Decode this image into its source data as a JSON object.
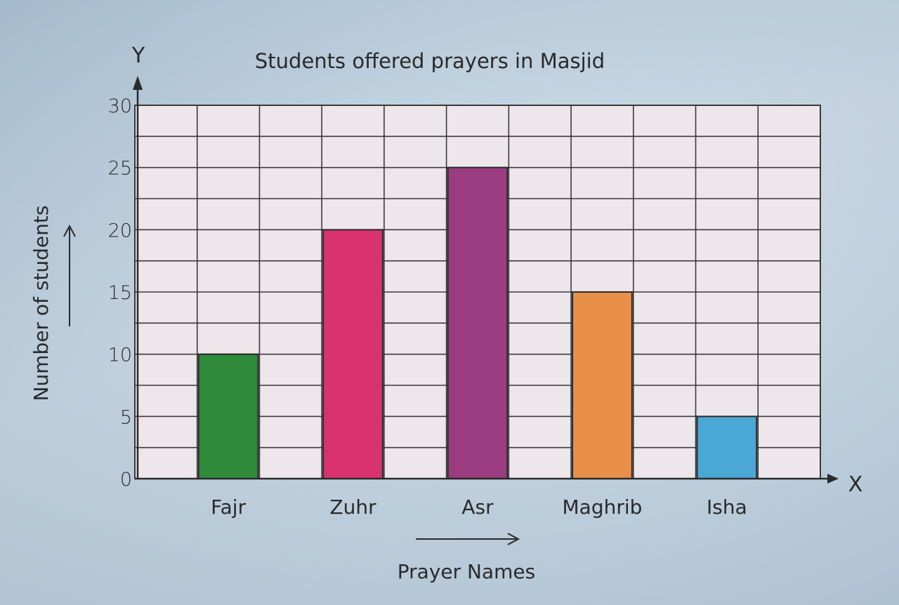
{
  "chart_data": {
    "type": "bar",
    "title": "Students offered prayers in Masjid",
    "xlabel": "Prayer Names",
    "ylabel": "Number of students",
    "x_axis_letter": "X",
    "y_axis_letter": "Y",
    "categories": [
      "Fajr",
      "Zuhr",
      "Asr",
      "Maghrib",
      "Isha"
    ],
    "values": [
      10,
      20,
      25,
      15,
      5
    ],
    "colors": [
      "#2f8a3a",
      "#d8336f",
      "#9a3c7f",
      "#e8904a",
      "#4aa7d6"
    ],
    "ylim": [
      0,
      30
    ],
    "yticks": [
      0,
      5,
      10,
      15,
      20,
      25,
      30
    ],
    "grid": true,
    "legend": "none"
  }
}
